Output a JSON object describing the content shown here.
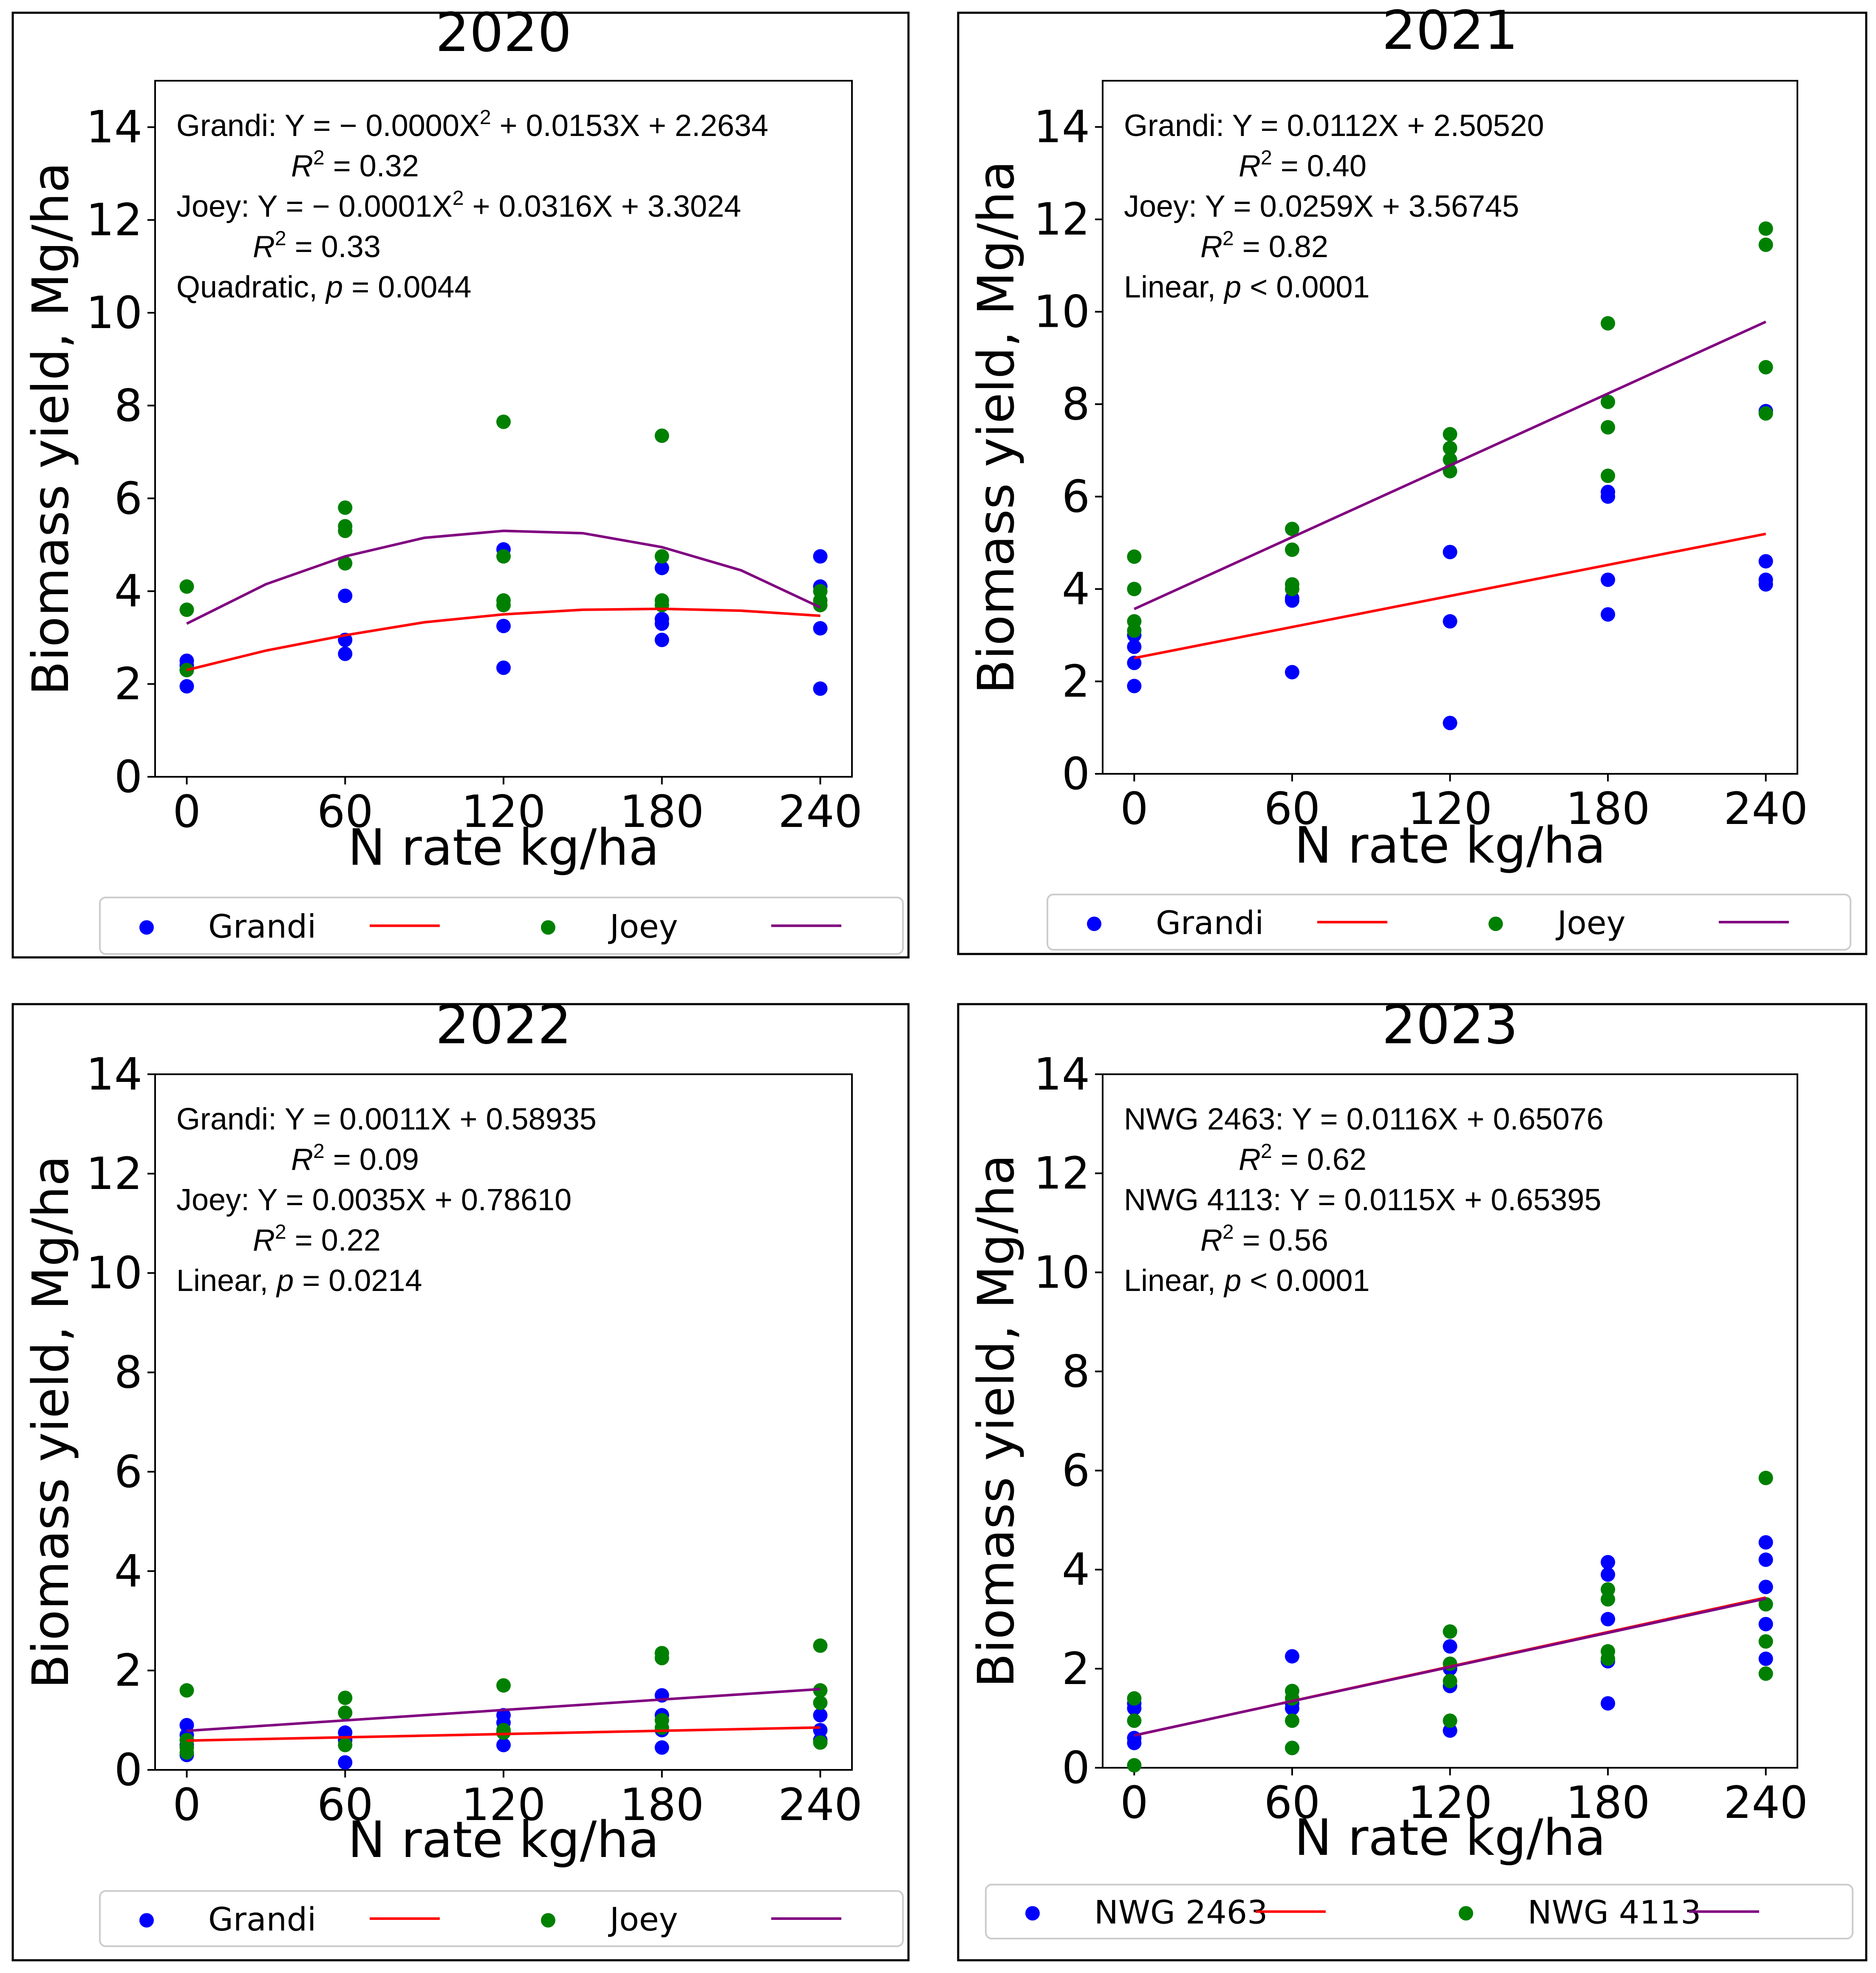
{
  "axes": {
    "xlabel": "N rate kg/ha",
    "ylabel": "Biomass yield, Mg/ha",
    "xticks": [
      "0",
      "60",
      "120",
      "180",
      "240"
    ],
    "yticks": [
      "0",
      "2",
      "4",
      "6",
      "8",
      "10",
      "12",
      "14"
    ]
  },
  "chart_data": [
    {
      "type": "scatter",
      "title": "2020",
      "xlabel": "N rate kg/ha",
      "ylabel": "Biomass yield, Mg/ha",
      "xlim": [
        -12,
        252
      ],
      "ylim": [
        0,
        15
      ],
      "xticks": [
        0,
        60,
        120,
        180,
        240
      ],
      "yticks": [
        0,
        2,
        4,
        6,
        8,
        10,
        12,
        14
      ],
      "fit": "quadratic",
      "series": [
        {
          "name": "Grandi",
          "color": "#0000ff",
          "points": [
            [
              0,
              1.95
            ],
            [
              0,
              2.3
            ],
            [
              0,
              2.4
            ],
            [
              0,
              2.5
            ],
            [
              60,
              2.65
            ],
            [
              60,
              2.95
            ],
            [
              60,
              3.9
            ],
            [
              120,
              2.35
            ],
            [
              120,
              3.25
            ],
            [
              120,
              4.9
            ],
            [
              180,
              2.95
            ],
            [
              180,
              3.3
            ],
            [
              180,
              3.4
            ],
            [
              180,
              4.5
            ],
            [
              240,
              1.9
            ],
            [
              240,
              3.2
            ],
            [
              240,
              4.1
            ],
            [
              240,
              4.75
            ]
          ]
        },
        {
          "name": "Joey",
          "color": "#008000",
          "points": [
            [
              0,
              3.6
            ],
            [
              0,
              4.1
            ],
            [
              0,
              2.3
            ],
            [
              60,
              4.6
            ],
            [
              60,
              5.3
            ],
            [
              60,
              5.4
            ],
            [
              60,
              5.8
            ],
            [
              120,
              3.7
            ],
            [
              120,
              3.8
            ],
            [
              120,
              4.75
            ],
            [
              120,
              7.65
            ],
            [
              180,
              3.7
            ],
            [
              180,
              3.8
            ],
            [
              180,
              4.75
            ],
            [
              180,
              7.35
            ],
            [
              240,
              3.7
            ],
            [
              240,
              3.8
            ],
            [
              240,
              4.0
            ]
          ]
        }
      ],
      "fits": [
        {
          "name": "Grandi",
          "color": "#ff0000",
          "points": [
            [
              0,
              2.3
            ],
            [
              30,
              2.72
            ],
            [
              60,
              3.05
            ],
            [
              90,
              3.33
            ],
            [
              120,
              3.5
            ],
            [
              150,
              3.6
            ],
            [
              180,
              3.62
            ],
            [
              210,
              3.58
            ],
            [
              240,
              3.47
            ]
          ]
        },
        {
          "name": "Joey",
          "color": "#800080",
          "points": [
            [
              0,
              3.3
            ],
            [
              30,
              4.15
            ],
            [
              60,
              4.75
            ],
            [
              90,
              5.15
            ],
            [
              120,
              5.3
            ],
            [
              150,
              5.25
            ],
            [
              180,
              4.95
            ],
            [
              210,
              4.45
            ],
            [
              240,
              3.65
            ]
          ]
        }
      ],
      "annotations": [
        {
          "prefix": "Grandi: Y = − 0.0000X",
          "sup": "2",
          "suffix": " + 0.0153X + 2.2634"
        },
        {
          "r2": "R",
          "sup": "2",
          "suffix": "  = 0.32"
        },
        {
          "prefix": "Joey: Y = − 0.0001X",
          "sup": "2",
          "suffix": " + 0.0316X + 3.3024"
        },
        {
          "r2": "R",
          "sup": "2",
          "suffix": "  = 0.33"
        },
        {
          "prefix": "Quadratic, ",
          "p": "p",
          "suffix": " = 0.0044"
        }
      ],
      "legend": [
        "Grandi",
        "Joey"
      ]
    },
    {
      "type": "scatter",
      "title": "2021",
      "xlabel": "N rate kg/ha",
      "ylabel": "Biomass yield, Mg/ha",
      "xlim": [
        -12,
        252
      ],
      "ylim": [
        0,
        15
      ],
      "xticks": [
        0,
        60,
        120,
        180,
        240
      ],
      "yticks": [
        0,
        2,
        4,
        6,
        8,
        10,
        12,
        14
      ],
      "fit": "linear",
      "series": [
        {
          "name": "Grandi",
          "color": "#0000ff",
          "points": [
            [
              0,
              1.9
            ],
            [
              0,
              2.4
            ],
            [
              0,
              2.75
            ],
            [
              0,
              3.0
            ],
            [
              60,
              2.2
            ],
            [
              60,
              3.75
            ],
            [
              60,
              3.8
            ],
            [
              120,
              1.1
            ],
            [
              120,
              3.3
            ],
            [
              120,
              4.8
            ],
            [
              180,
              3.45
            ],
            [
              180,
              4.2
            ],
            [
              180,
              6.0
            ],
            [
              180,
              6.1
            ],
            [
              240,
              4.1
            ],
            [
              240,
              4.2
            ],
            [
              240,
              4.6
            ],
            [
              240,
              7.85
            ]
          ]
        },
        {
          "name": "Joey",
          "color": "#008000",
          "points": [
            [
              0,
              3.1
            ],
            [
              0,
              3.3
            ],
            [
              0,
              4.0
            ],
            [
              0,
              4.7
            ],
            [
              60,
              4.0
            ],
            [
              60,
              4.1
            ],
            [
              60,
              4.85
            ],
            [
              60,
              5.3
            ],
            [
              120,
              6.55
            ],
            [
              120,
              6.8
            ],
            [
              120,
              7.05
            ],
            [
              120,
              7.35
            ],
            [
              180,
              6.45
            ],
            [
              180,
              7.5
            ],
            [
              180,
              8.05
            ],
            [
              180,
              9.75
            ],
            [
              240,
              7.8
            ],
            [
              240,
              8.8
            ],
            [
              240,
              11.45
            ],
            [
              240,
              11.8
            ]
          ]
        }
      ],
      "fits": [
        {
          "name": "Grandi",
          "color": "#ff0000",
          "points": [
            [
              0,
              2.5052
            ],
            [
              240,
              5.1932
            ]
          ]
        },
        {
          "name": "Joey",
          "color": "#800080",
          "points": [
            [
              0,
              3.56745
            ],
            [
              240,
              9.78345
            ]
          ]
        }
      ],
      "annotations": [
        {
          "prefix": "Grandi: Y = 0.0112X + 2.50520"
        },
        {
          "r2": "R",
          "sup": "2",
          "suffix": "  = 0.40"
        },
        {
          "prefix": "Joey: Y = 0.0259X + 3.56745"
        },
        {
          "r2": "R",
          "sup": "2",
          "suffix": "  = 0.82"
        },
        {
          "prefix": "Linear, ",
          "p": "p",
          "suffix": " < 0.0001"
        }
      ],
      "legend": [
        "Grandi",
        "Joey"
      ]
    },
    {
      "type": "scatter",
      "title": "2022",
      "xlabel": "N rate kg/ha",
      "ylabel": "Biomass yield, Mg/ha",
      "xlim": [
        -12,
        252
      ],
      "ylim": [
        0,
        14
      ],
      "xticks": [
        0,
        60,
        120,
        180,
        240
      ],
      "yticks": [
        0,
        2,
        4,
        6,
        8,
        10,
        12,
        14
      ],
      "fit": "linear",
      "series": [
        {
          "name": "Grandi",
          "color": "#0000ff",
          "points": [
            [
              0,
              0.3
            ],
            [
              0,
              0.5
            ],
            [
              0,
              0.7
            ],
            [
              0,
              0.9
            ],
            [
              60,
              0.15
            ],
            [
              60,
              0.6
            ],
            [
              60,
              0.75
            ],
            [
              120,
              0.5
            ],
            [
              120,
              0.75
            ],
            [
              120,
              0.95
            ],
            [
              120,
              1.1
            ],
            [
              180,
              0.45
            ],
            [
              180,
              0.8
            ],
            [
              180,
              1.1
            ],
            [
              180,
              1.5
            ],
            [
              240,
              0.6
            ],
            [
              240,
              0.8
            ],
            [
              240,
              1.1
            ]
          ]
        },
        {
          "name": "Joey",
          "color": "#008000",
          "points": [
            [
              0,
              0.35
            ],
            [
              0,
              0.45
            ],
            [
              0,
              0.6
            ],
            [
              0,
              1.6
            ],
            [
              60,
              0.5
            ],
            [
              60,
              1.15
            ],
            [
              60,
              1.45
            ],
            [
              120,
              0.75
            ],
            [
              120,
              0.8
            ],
            [
              120,
              1.7
            ],
            [
              180,
              0.85
            ],
            [
              180,
              1.0
            ],
            [
              180,
              2.25
            ],
            [
              180,
              2.35
            ],
            [
              240,
              0.55
            ],
            [
              240,
              1.35
            ],
            [
              240,
              1.6
            ],
            [
              240,
              2.5
            ]
          ]
        }
      ],
      "fits": [
        {
          "name": "Grandi",
          "color": "#ff0000",
          "points": [
            [
              0,
              0.58935
            ],
            [
              240,
              0.85335
            ]
          ]
        },
        {
          "name": "Joey",
          "color": "#800080",
          "points": [
            [
              0,
              0.7861
            ],
            [
              240,
              1.6261
            ]
          ]
        }
      ],
      "annotations": [
        {
          "prefix": "Grandi: Y = 0.0011X + 0.58935"
        },
        {
          "r2": "R",
          "sup": "2",
          "suffix": "  = 0.09"
        },
        {
          "prefix": "Joey: Y = 0.0035X + 0.78610"
        },
        {
          "r2": "R",
          "sup": "2",
          "suffix": "  = 0.22"
        },
        {
          "prefix": "Linear, ",
          "p": "p",
          "suffix": " = 0.0214"
        }
      ],
      "legend": [
        "Grandi",
        "Joey"
      ]
    },
    {
      "type": "scatter",
      "title": "2023",
      "xlabel": "N rate kg/ha",
      "ylabel": "Biomass yield, Mg/ha",
      "xlim": [
        -12,
        252
      ],
      "ylim": [
        0,
        14
      ],
      "xticks": [
        0,
        60,
        120,
        180,
        240
      ],
      "yticks": [
        0,
        2,
        4,
        6,
        8,
        10,
        12,
        14
      ],
      "fit": "linear",
      "series": [
        {
          "name": "NWG 2463",
          "color": "#0000ff",
          "points": [
            [
              0,
              0.5
            ],
            [
              0,
              0.6
            ],
            [
              0,
              1.2
            ],
            [
              0,
              1.3
            ],
            [
              60,
              1.2
            ],
            [
              60,
              1.3
            ],
            [
              60,
              2.25
            ],
            [
              60,
              0.4
            ],
            [
              120,
              0.75
            ],
            [
              120,
              1.65
            ],
            [
              120,
              2.0
            ],
            [
              120,
              2.45
            ],
            [
              180,
              1.3
            ],
            [
              180,
              2.15
            ],
            [
              180,
              3.0
            ],
            [
              180,
              3.9
            ],
            [
              180,
              4.15
            ],
            [
              240,
              2.2
            ],
            [
              240,
              2.9
            ],
            [
              240,
              3.65
            ],
            [
              240,
              4.2
            ],
            [
              240,
              4.55
            ]
          ]
        },
        {
          "name": "NWG 4113",
          "color": "#008000",
          "points": [
            [
              0,
              0.05
            ],
            [
              0,
              0.95
            ],
            [
              0,
              1.4
            ],
            [
              60,
              0.4
            ],
            [
              60,
              0.95
            ],
            [
              60,
              1.4
            ],
            [
              60,
              1.55
            ],
            [
              120,
              0.95
            ],
            [
              120,
              1.75
            ],
            [
              120,
              2.1
            ],
            [
              120,
              2.75
            ],
            [
              180,
              2.2
            ],
            [
              180,
              2.35
            ],
            [
              180,
              3.4
            ],
            [
              180,
              3.6
            ],
            [
              240,
              1.9
            ],
            [
              240,
              2.55
            ],
            [
              240,
              3.3
            ],
            [
              240,
              5.85
            ]
          ]
        }
      ],
      "fits": [
        {
          "name": "NWG 2463",
          "color": "#ff0000",
          "points": [
            [
              0,
              0.65076
            ],
            [
              240,
              3.43476
            ]
          ]
        },
        {
          "name": "NWG 4113",
          "color": "#800080",
          "points": [
            [
              0,
              0.65395
            ],
            [
              240,
              3.41395
            ]
          ]
        }
      ],
      "annotations": [
        {
          "prefix": "NWG 2463: Y = 0.0116X + 0.65076"
        },
        {
          "r2": "R",
          "sup": "2",
          "suffix": "  = 0.62"
        },
        {
          "prefix": "NWG 4113: Y = 0.0115X + 0.65395"
        },
        {
          "r2": "R",
          "sup": "2",
          "suffix": "  = 0.56"
        },
        {
          "prefix": "Linear, ",
          "p": "p",
          "suffix": " < 0.0001"
        }
      ],
      "legend": [
        "NWG 2463",
        "NWG 4113"
      ]
    }
  ]
}
